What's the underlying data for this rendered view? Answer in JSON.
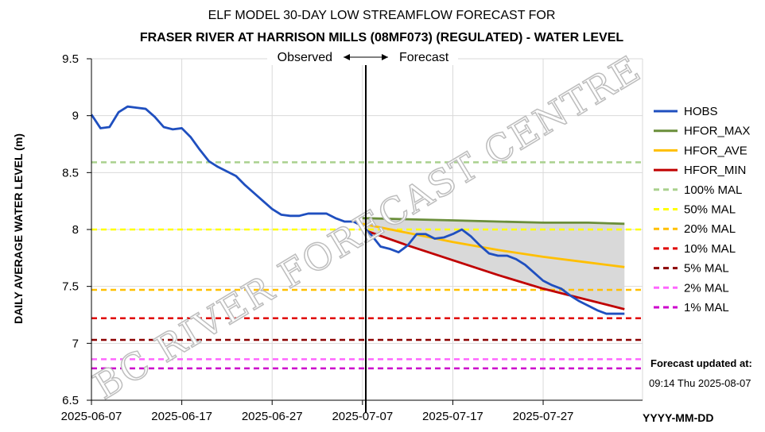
{
  "chart_data": {
    "type": "line",
    "title": "ELF MODEL 30-DAY LOW STREAMFLOW FORECAST FOR",
    "subtitle": "FRASER RIVER AT HARRISON MILLS (08MF073) (REGULATED)  - WATER LEVEL",
    "xlabel": "YYYY-MM-DD",
    "ylabel": "DAILY AVERAGE WATER LEVEL (m)",
    "ylim": [
      6.5,
      9.5
    ],
    "yticks": [
      "6.5",
      "7",
      "7.5",
      "8",
      "8.5",
      "9",
      "9.5"
    ],
    "xlim": [
      "2025-06-07",
      "2025-08-07"
    ],
    "xticks": [
      "2025-06-07",
      "2025-06-17",
      "2025-06-27",
      "2025-07-07",
      "2025-07-17",
      "2025-07-27"
    ],
    "grid": true,
    "legend_position": "right",
    "forecast_start": "2025-07-07",
    "observed_label": "Observed",
    "forecast_label": "Forecast",
    "watermark": "BC RIVER FORECAST CENTRE",
    "update_label": "Forecast updated at:",
    "update_time": "09:14 Thu 2025-08-07",
    "series": [
      {
        "name": "HOBS",
        "color": "#1f4fbf",
        "style": "solid",
        "x": [
          "2025-06-07",
          "2025-06-08",
          "2025-06-09",
          "2025-06-10",
          "2025-06-11",
          "2025-06-12",
          "2025-06-13",
          "2025-06-14",
          "2025-06-15",
          "2025-06-16",
          "2025-06-17",
          "2025-06-18",
          "2025-06-19",
          "2025-06-20",
          "2025-06-21",
          "2025-06-22",
          "2025-06-23",
          "2025-06-24",
          "2025-06-25",
          "2025-06-26",
          "2025-06-27",
          "2025-06-28",
          "2025-06-29",
          "2025-06-30",
          "2025-07-01",
          "2025-07-02",
          "2025-07-03",
          "2025-07-04",
          "2025-07-05",
          "2025-07-06",
          "2025-07-07",
          "2025-07-08",
          "2025-07-09",
          "2025-07-10",
          "2025-07-11",
          "2025-07-12",
          "2025-07-13",
          "2025-07-14",
          "2025-07-15",
          "2025-07-16",
          "2025-07-17",
          "2025-07-18",
          "2025-07-19",
          "2025-07-20",
          "2025-07-21",
          "2025-07-22",
          "2025-07-23",
          "2025-07-24",
          "2025-07-25",
          "2025-07-26",
          "2025-07-27",
          "2025-07-28",
          "2025-07-29",
          "2025-07-30",
          "2025-07-31",
          "2025-08-01",
          "2025-08-02",
          "2025-08-03",
          "2025-08-04",
          "2025-08-05"
        ],
        "values": [
          9.01,
          8.89,
          8.9,
          9.03,
          9.08,
          9.07,
          9.06,
          8.99,
          8.9,
          8.88,
          8.89,
          8.81,
          8.7,
          8.6,
          8.55,
          8.51,
          8.47,
          8.39,
          8.32,
          8.25,
          8.18,
          8.13,
          8.12,
          8.12,
          8.14,
          8.14,
          8.14,
          8.1,
          8.07,
          8.07,
          8.03,
          7.95,
          7.85,
          7.83,
          7.8,
          7.86,
          7.96,
          7.96,
          7.92,
          7.93,
          7.96,
          8.0,
          7.94,
          7.86,
          7.79,
          7.77,
          7.77,
          7.74,
          7.69,
          7.62,
          7.55,
          7.51,
          7.48,
          7.42,
          7.37,
          7.33,
          7.29,
          7.26,
          7.26,
          7.26
        ]
      },
      {
        "name": "HFOR_MAX",
        "color": "#6a8e3a",
        "style": "solid",
        "x": [
          "2025-07-07",
          "2025-07-12",
          "2025-07-17",
          "2025-07-22",
          "2025-07-27",
          "2025-08-01",
          "2025-08-05"
        ],
        "values": [
          8.1,
          8.09,
          8.08,
          8.07,
          8.06,
          8.06,
          8.05
        ]
      },
      {
        "name": "HFOR_AVE",
        "color": "#ffbf00",
        "style": "solid",
        "x": [
          "2025-07-07",
          "2025-07-12",
          "2025-07-17",
          "2025-07-22",
          "2025-07-27",
          "2025-08-01",
          "2025-08-05"
        ],
        "values": [
          8.05,
          7.97,
          7.89,
          7.82,
          7.76,
          7.71,
          7.67
        ]
      },
      {
        "name": "HFOR_MIN",
        "color": "#c00000",
        "style": "solid",
        "x": [
          "2025-07-07",
          "2025-07-12",
          "2025-07-17",
          "2025-07-22",
          "2025-07-27",
          "2025-08-01",
          "2025-08-05"
        ],
        "values": [
          8.0,
          7.86,
          7.73,
          7.6,
          7.48,
          7.38,
          7.3
        ]
      },
      {
        "name": "100% MAL",
        "color": "#a9d18e",
        "style": "dashed",
        "value": 8.59
      },
      {
        "name": "50% MAL",
        "color": "#ffff00",
        "style": "dashed",
        "value": 8.0
      },
      {
        "name": "20% MAL",
        "color": "#ffc000",
        "style": "dashed",
        "value": 7.47
      },
      {
        "name": "10% MAL",
        "color": "#e00000",
        "style": "dashed",
        "value": 7.22
      },
      {
        "name": "5% MAL",
        "color": "#8b0000",
        "style": "dashed",
        "value": 7.03
      },
      {
        "name": "2% MAL",
        "color": "#ff66ff",
        "style": "dashed",
        "value": 6.86
      },
      {
        "name": "1% MAL",
        "color": "#cc00cc",
        "style": "dashed",
        "value": 6.78
      }
    ]
  }
}
